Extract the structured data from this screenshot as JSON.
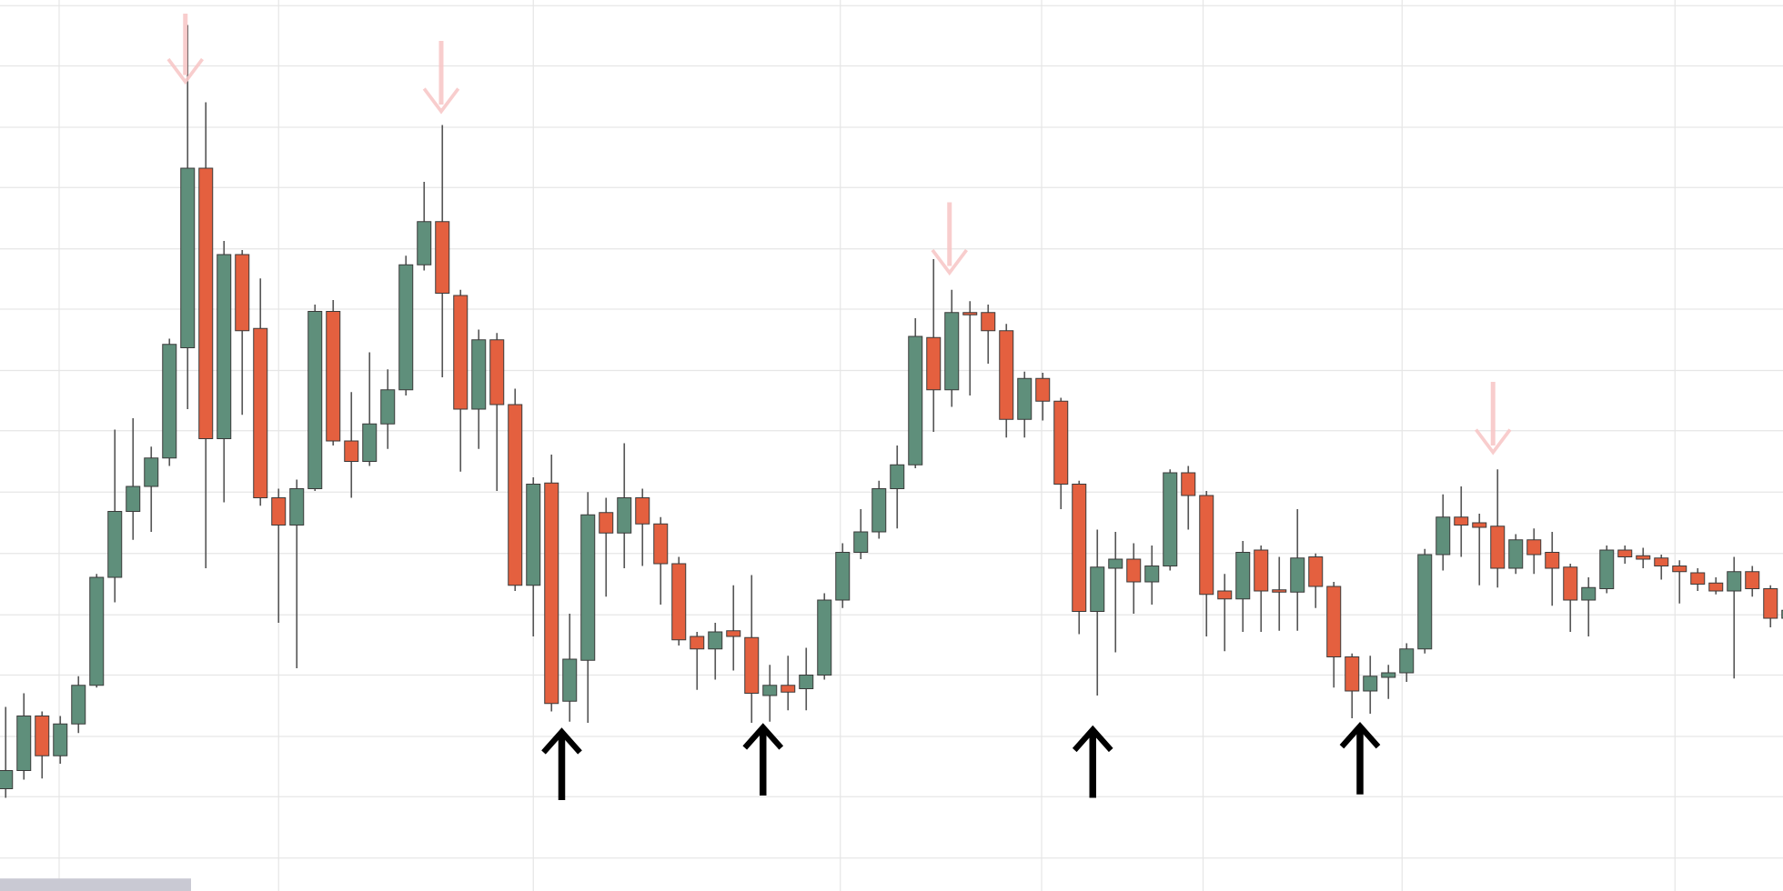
{
  "chart_data": {
    "type": "candlestick",
    "open": [
      90,
      106,
      154,
      119,
      147,
      181,
      276,
      334,
      356,
      381,
      478,
      636,
      398,
      560,
      495,
      346,
      322,
      354,
      510,
      396,
      378,
      411,
      441,
      551,
      589,
      524,
      424,
      485,
      428,
      269,
      359,
      167,
      203,
      333,
      315,
      346,
      323,
      288,
      224,
      213,
      229,
      223,
      172,
      181,
      178,
      190,
      256,
      298,
      316,
      354,
      375,
      487,
      441,
      509,
      509,
      493,
      415,
      451,
      431,
      358,
      246,
      284,
      292,
      272,
      286,
      368,
      348,
      264,
      257,
      300,
      265,
      263,
      294,
      268,
      206,
      176,
      188,
      192,
      213,
      296,
      329,
      324,
      321,
      284,
      309,
      298,
      285,
      256,
      266,
      300,
      295,
      293,
      286,
      280,
      271,
      264,
      281,
      266,
      240
    ],
    "high": [
      162,
      174,
      158,
      154,
      189,
      279,
      406,
      416,
      391,
      486,
      762,
      694,
      572,
      564,
      539,
      354,
      362,
      516,
      520,
      439,
      474,
      459,
      559,
      624,
      674,
      529,
      494,
      491,
      442,
      364,
      384,
      244,
      351,
      346,
      394,
      354,
      329,
      294,
      228,
      236,
      269,
      278,
      199,
      207,
      214,
      262,
      306,
      336,
      361,
      392,
      504,
      556,
      529,
      519,
      516,
      499,
      457,
      456,
      434,
      361,
      318,
      316,
      306,
      304,
      371,
      374,
      352,
      279,
      308,
      304,
      294,
      336,
      297,
      272,
      209,
      207,
      199,
      218,
      301,
      349,
      356,
      332,
      371,
      314,
      319,
      316,
      288,
      276,
      304,
      304,
      302,
      296,
      291,
      284,
      276,
      294,
      286,
      269,
      250
    ],
    "low": [
      82,
      98,
      99,
      112,
      139,
      179,
      254,
      309,
      316,
      374,
      424,
      284,
      342,
      419,
      339,
      236,
      196,
      352,
      392,
      346,
      374,
      389,
      436,
      546,
      452,
      369,
      389,
      352,
      264,
      224,
      158,
      149,
      148,
      259,
      284,
      286,
      252,
      216,
      177,
      186,
      194,
      148,
      149,
      159,
      159,
      186,
      249,
      292,
      310,
      319,
      372,
      404,
      426,
      436,
      464,
      399,
      399,
      414,
      336,
      226,
      172,
      210,
      244,
      252,
      282,
      318,
      224,
      211,
      228,
      228,
      229,
      229,
      249,
      179,
      152,
      156,
      169,
      184,
      209,
      282,
      294,
      269,
      267,
      279,
      279,
      251,
      228,
      224,
      262,
      288,
      284,
      274,
      253,
      264,
      261,
      187,
      259,
      232,
      236
    ],
    "close": [
      106,
      154,
      119,
      147,
      181,
      276,
      334,
      356,
      381,
      481,
      636,
      398,
      560,
      493,
      346,
      322,
      354,
      510,
      396,
      378,
      411,
      441,
      551,
      589,
      526,
      424,
      485,
      428,
      269,
      358,
      165,
      204,
      331,
      315,
      346,
      323,
      288,
      221,
      213,
      228,
      224,
      174,
      181,
      175,
      190,
      256,
      298,
      316,
      354,
      375,
      488,
      441,
      509,
      507,
      493,
      415,
      451,
      431,
      358,
      246,
      285,
      292,
      272,
      286,
      368,
      348,
      261,
      257,
      298,
      264,
      263,
      293,
      268,
      206,
      176,
      189,
      192,
      213,
      296,
      329,
      322,
      320,
      284,
      309,
      296,
      284,
      256,
      267,
      300,
      294,
      292,
      286,
      281,
      270,
      264,
      281,
      266,
      240,
      247
    ],
    "up_color": "#5f8f7b",
    "down_color": "#e4603f",
    "ylim": [
      0,
      784
    ],
    "yticks": [
      29,
      83,
      136,
      190,
      243,
      297,
      351,
      405,
      458,
      512,
      565,
      619,
      672,
      726,
      779
    ],
    "grid": true
  }
}
